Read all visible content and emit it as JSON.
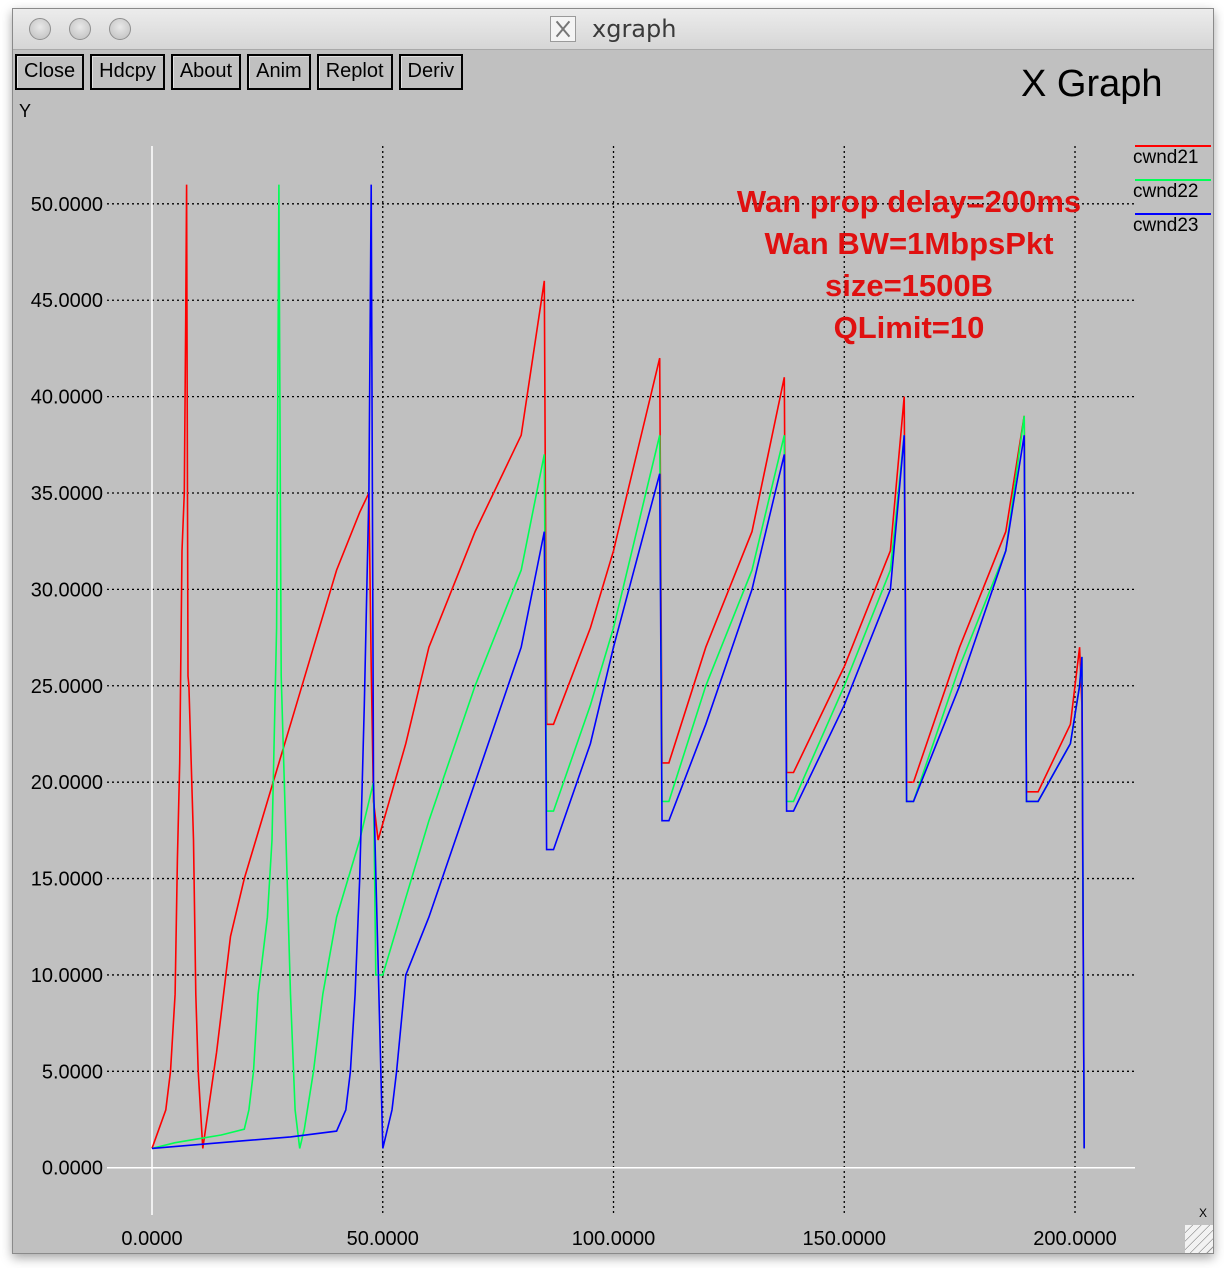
{
  "window": {
    "title": "xgraph"
  },
  "toolbar": {
    "buttons": [
      "Close",
      "Hdcpy",
      "About",
      "Anim",
      "Replot",
      "Deriv"
    ]
  },
  "graph_title": "X Graph",
  "y_axis_label": "Y",
  "x_axis_label": "X",
  "annotation": {
    "lines": [
      "Wan prop delay=200ms",
      "Wan BW=1MbpsPkt",
      "size=1500B",
      "QLimit=10"
    ],
    "color": "#e01010"
  },
  "chart_data": {
    "type": "line",
    "title": "X Graph",
    "xlabel": "X",
    "ylabel": "Y",
    "xlim": [
      0,
      213
    ],
    "ylim": [
      -1,
      53
    ],
    "grid": true,
    "legend_position": "top-right",
    "x_ticks": [
      "0.0000",
      "50.0000",
      "100.0000",
      "150.0000",
      "200.0000"
    ],
    "y_ticks": [
      "0.0000",
      "5.0000",
      "10.0000",
      "15.0000",
      "20.0000",
      "25.0000",
      "30.0000",
      "35.0000",
      "40.0000",
      "45.0000",
      "50.0000"
    ],
    "series": [
      {
        "name": "cwnd21",
        "color": "#ff0000",
        "x": [
          0,
          3,
          4,
          5,
          5.5,
          6,
          6.5,
          7,
          7.3,
          7.5,
          7.8,
          8,
          9,
          9.5,
          10,
          10.5,
          11,
          14,
          17,
          20,
          25,
          30,
          35,
          40,
          45,
          47,
          47.5,
          48,
          49,
          55,
          60,
          70,
          80,
          85,
          85.5,
          87,
          95,
          100,
          110,
          110.5,
          112,
          120,
          130,
          137,
          137.5,
          139,
          150,
          160,
          163,
          163.5,
          165,
          175,
          185,
          189,
          189.5,
          192,
          199,
          201,
          201.5,
          202
        ],
        "y": [
          1,
          3,
          5,
          9,
          16,
          21,
          32,
          35,
          44,
          51,
          25.5,
          25,
          17,
          9,
          5,
          3,
          1,
          6,
          12,
          15,
          19,
          23,
          27,
          31,
          34,
          35,
          26,
          19,
          17,
          22,
          27,
          33,
          38,
          46,
          23,
          23,
          28,
          32,
          42,
          21,
          21,
          27,
          33,
          41,
          20.5,
          20.5,
          26,
          32,
          40,
          20,
          20,
          27,
          33,
          39,
          19.5,
          19.5,
          23,
          27,
          24,
          1
        ]
      },
      {
        "name": "cwnd22",
        "color": "#00ff55",
        "x": [
          0,
          5,
          10,
          15,
          20,
          21,
          22,
          23,
          25,
          26,
          27,
          27.5,
          28,
          30,
          31,
          32,
          33,
          35,
          37,
          40,
          45,
          48,
          48.5,
          50,
          55,
          60,
          70,
          80,
          85,
          85.5,
          87,
          95,
          100,
          110,
          110.5,
          112,
          120,
          130,
          137,
          137.5,
          139,
          150,
          160,
          163,
          163.5,
          165,
          175,
          185,
          189,
          189.5,
          192,
          199,
          201,
          201.5,
          202
        ],
        "y": [
          1,
          1.3,
          1.5,
          1.7,
          2,
          3,
          5,
          9,
          13,
          17,
          28,
          51,
          25.5,
          9,
          3,
          1,
          2,
          5,
          9,
          13,
          17,
          20,
          10,
          10,
          14,
          18,
          25,
          31,
          37,
          18.5,
          18.5,
          24,
          28,
          38,
          19,
          19,
          25,
          31,
          38,
          19,
          19,
          25,
          31,
          38,
          19,
          19,
          26,
          32,
          39,
          19,
          19,
          22,
          25,
          26.5,
          1
        ]
      },
      {
        "name": "cwnd23",
        "color": "#0000ff",
        "x": [
          0,
          10,
          20,
          30,
          40,
          42,
          43,
          44,
          45,
          46,
          47,
          47.5,
          48,
          50,
          51,
          52,
          53,
          55,
          60,
          70,
          80,
          85,
          85.5,
          87,
          95,
          100,
          110,
          110.5,
          112,
          120,
          130,
          137,
          137.5,
          139,
          150,
          160,
          163,
          163.5,
          165,
          175,
          185,
          189,
          189.5,
          192,
          199,
          201,
          201.5,
          202
        ],
        "y": [
          1,
          1.2,
          1.4,
          1.6,
          1.9,
          3,
          5,
          9,
          15,
          24,
          35,
          51,
          20,
          1,
          2,
          3,
          5,
          10,
          13,
          20,
          27,
          33,
          16.5,
          16.5,
          22,
          27,
          36,
          18,
          18,
          23,
          30,
          37,
          18.5,
          18.5,
          24,
          30,
          38,
          19,
          19,
          25,
          32,
          38,
          19,
          19,
          22,
          25,
          26.5,
          1
        ]
      }
    ]
  }
}
